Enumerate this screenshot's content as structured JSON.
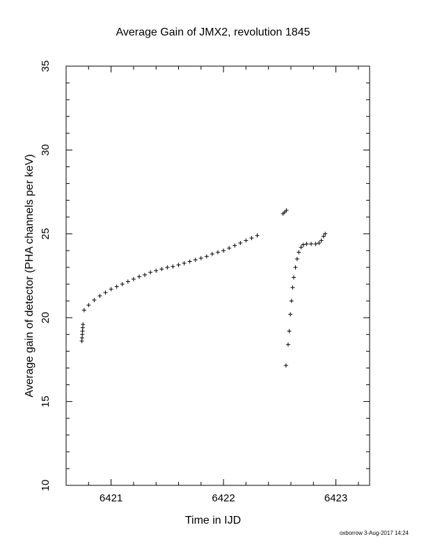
{
  "chart_data": {
    "type": "scatter",
    "title": "Average Gain of JMX2, revolution 1845",
    "x_label": "Time in IJD",
    "y_label": "Average gain of detector (PHA channels per keV)",
    "footer": "oxborrow  3-Aug-2017 14:24",
    "marker": "+",
    "color": "#000000",
    "x": [
      6420.74,
      6420.742,
      6420.744,
      6420.746,
      6420.748,
      6420.75,
      6420.76,
      6420.8,
      6420.85,
      6420.9,
      6420.95,
      6421.0,
      6421.05,
      6421.1,
      6421.15,
      6421.2,
      6421.25,
      6421.3,
      6421.35,
      6421.4,
      6421.45,
      6421.5,
      6421.55,
      6421.6,
      6421.65,
      6421.7,
      6421.75,
      6421.8,
      6421.85,
      6421.9,
      6421.95,
      6422.0,
      6422.05,
      6422.1,
      6422.15,
      6422.2,
      6422.25,
      6422.3,
      6422.53,
      6422.545,
      6422.56,
      6422.556,
      6422.575,
      6422.585,
      6422.595,
      6422.605,
      6422.615,
      6422.625,
      6422.64,
      6422.655,
      6422.67,
      6422.69,
      6422.71,
      6422.74,
      6422.78,
      6422.82,
      6422.85,
      6422.87,
      6422.89,
      6422.905
    ],
    "values": [
      18.6,
      18.8,
      19.0,
      19.2,
      19.4,
      19.6,
      20.45,
      20.75,
      21.05,
      21.3,
      21.5,
      21.7,
      21.85,
      22.0,
      22.15,
      22.3,
      22.45,
      22.55,
      22.7,
      22.8,
      22.9,
      23.0,
      23.05,
      23.15,
      23.25,
      23.35,
      23.45,
      23.55,
      23.65,
      23.8,
      23.9,
      24.0,
      24.15,
      24.3,
      24.45,
      24.6,
      24.75,
      24.9,
      26.2,
      26.3,
      26.4,
      17.15,
      18.4,
      19.2,
      20.2,
      21.0,
      21.8,
      22.4,
      23.0,
      23.5,
      23.9,
      24.2,
      24.35,
      24.4,
      24.4,
      24.4,
      24.45,
      24.6,
      24.85,
      25.0
    ],
    "xlim": [
      6420.6,
      6423.3
    ],
    "ylim": [
      10,
      35
    ],
    "xticks": [
      6421,
      6422,
      6423
    ],
    "yticks": [
      10,
      15,
      20,
      25,
      30,
      35
    ],
    "xminorticks": [
      6420.6,
      6420.8,
      6421.2,
      6421.4,
      6421.6,
      6421.8,
      6422.2,
      6422.4,
      6422.6,
      6422.8,
      6423.2
    ],
    "yminorticks": [
      11,
      12,
      13,
      14,
      16,
      17,
      18,
      19,
      21,
      22,
      23,
      24,
      26,
      27,
      28,
      29,
      31,
      32,
      33,
      34
    ]
  }
}
